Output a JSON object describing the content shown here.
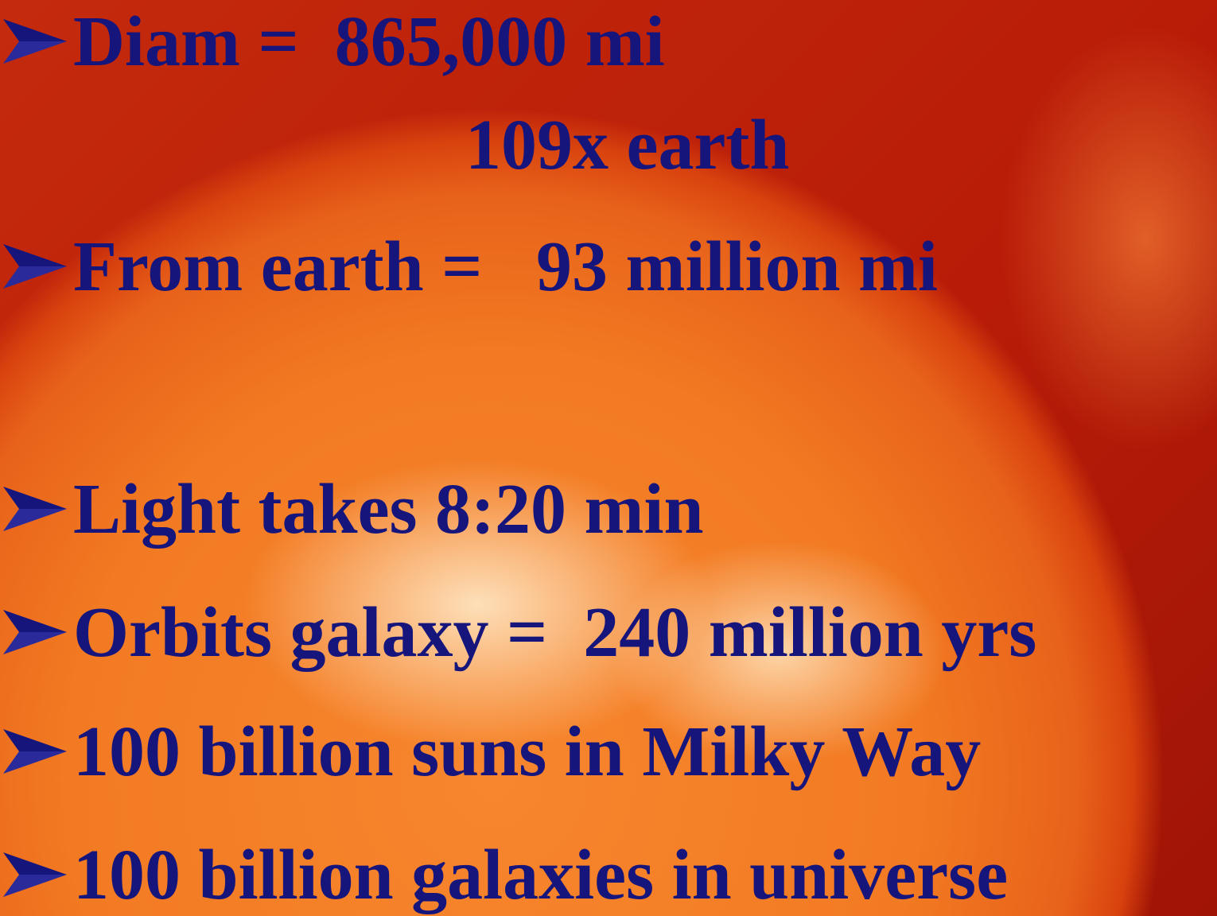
{
  "bullets": [
    {
      "text": "Diam =  865,000 mi",
      "continuation": "109x earth"
    },
    {
      "text": "From earth =   93 million mi"
    },
    {
      "text": "Light takes 8:20 min"
    },
    {
      "text": "Orbits galaxy =  240 million yrs"
    },
    {
      "text": "100 billion suns in Milky Way"
    },
    {
      "text": "100 billion galaxies in universe"
    }
  ]
}
